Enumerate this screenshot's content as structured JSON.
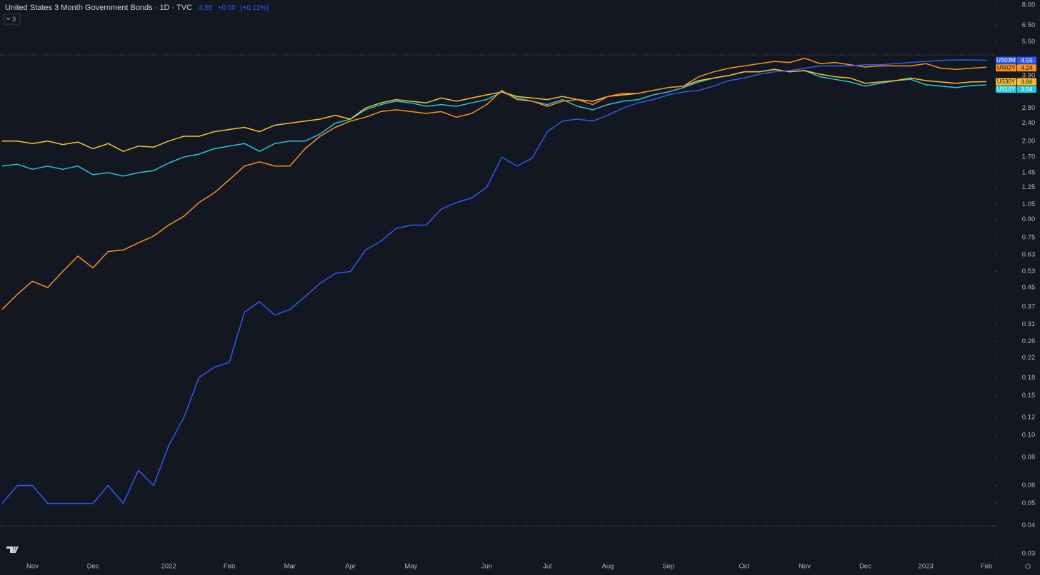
{
  "chart_data": {
    "type": "line",
    "title": "United States 3 Month Government Bonds · 1D · TVC",
    "change": "+0.00",
    "change_percent": "(+0.11%)",
    "indicator_count": 3,
    "log_scale": true,
    "grid": false,
    "ylim": [
      0.0285,
      8.41
    ],
    "yticks": [
      {
        "value": 8,
        "label": "8.00"
      },
      {
        "value": 6.5,
        "label": "6.50"
      },
      {
        "value": 5.5,
        "label": "5.50"
      },
      {
        "value": 3.9,
        "label": "3.90"
      },
      {
        "value": 2.8,
        "label": "2.80"
      },
      {
        "value": 2.4,
        "label": "2.40"
      },
      {
        "value": 2,
        "label": "2.00"
      },
      {
        "value": 1.7,
        "label": "1.70"
      },
      1.45,
      1.25,
      1.05,
      {
        "value": 0.9,
        "label": "0.90"
      },
      0.75,
      0.63,
      0.53,
      0.45,
      0.37,
      0.31,
      0.26,
      0.22,
      0.18,
      0.15,
      0.12,
      {
        "value": 0.1,
        "label": "0.10"
      },
      0.08,
      0.06,
      0.05,
      0.04,
      0.03
    ],
    "categories": [
      null,
      null,
      "Nov",
      null,
      null,
      null,
      "Dec",
      null,
      null,
      null,
      null,
      "2022",
      null,
      null,
      null,
      "Feb",
      null,
      null,
      null,
      "Mar",
      null,
      null,
      null,
      "Apr",
      null,
      null,
      null,
      "May",
      null,
      null,
      null,
      null,
      "Jun",
      null,
      null,
      null,
      "Jul",
      null,
      null,
      null,
      "Aug",
      null,
      null,
      null,
      "Sep",
      null,
      null,
      null,
      null,
      "Oct",
      null,
      null,
      null,
      "Nov",
      null,
      null,
      null,
      "Dec",
      null,
      null,
      null,
      "2023",
      null,
      null,
      null,
      "Feb"
    ],
    "series": [
      {
        "name": "US03M",
        "color": "#2f5cf0",
        "values": [
          0.05,
          0.06,
          0.06,
          0.05,
          0.05,
          0.05,
          0.05,
          0.06,
          0.05,
          0.07,
          0.06,
          0.09,
          0.12,
          0.18,
          0.2,
          0.21,
          0.35,
          0.39,
          0.34,
          0.36,
          0.41,
          0.47,
          0.52,
          0.53,
          0.66,
          0.72,
          0.82,
          0.85,
          0.85,
          1.0,
          1.07,
          1.12,
          1.25,
          1.7,
          1.55,
          1.68,
          2.2,
          2.45,
          2.5,
          2.45,
          2.6,
          2.8,
          2.95,
          3.05,
          3.2,
          3.3,
          3.35,
          3.5,
          3.7,
          3.8,
          3.95,
          4.05,
          4.1,
          4.2,
          4.3,
          4.3,
          4.3,
          4.35,
          4.35,
          4.4,
          4.45,
          4.5,
          4.55,
          4.57,
          4.57,
          4.55
        ]
      },
      {
        "name": "US02Y",
        "color": "#f7931e",
        "values": [
          0.36,
          0.42,
          0.48,
          0.45,
          0.53,
          0.62,
          0.55,
          0.65,
          0.66,
          0.71,
          0.76,
          0.85,
          0.93,
          1.07,
          1.18,
          1.35,
          1.55,
          1.62,
          1.55,
          1.55,
          1.85,
          2.1,
          2.3,
          2.45,
          2.55,
          2.7,
          2.75,
          2.7,
          2.65,
          2.7,
          2.55,
          2.65,
          2.9,
          3.35,
          3.05,
          3.0,
          2.85,
          3.0,
          3.05,
          2.9,
          3.15,
          3.25,
          3.25,
          3.35,
          3.45,
          3.5,
          3.85,
          4.05,
          4.2,
          4.3,
          4.4,
          4.5,
          4.45,
          4.65,
          4.4,
          4.45,
          4.35,
          4.25,
          4.3,
          4.3,
          4.3,
          4.4,
          4.2,
          4.15,
          4.2,
          4.24
        ]
      },
      {
        "name": "US30Y",
        "color": "#fbc02d",
        "values": [
          2.0,
          2.0,
          1.95,
          2.0,
          1.93,
          1.98,
          1.85,
          1.95,
          1.8,
          1.9,
          1.88,
          2.0,
          2.1,
          2.1,
          2.2,
          2.25,
          2.3,
          2.2,
          2.35,
          2.4,
          2.45,
          2.5,
          2.6,
          2.5,
          2.8,
          2.95,
          3.05,
          3.0,
          2.95,
          3.1,
          3.0,
          3.1,
          3.2,
          3.3,
          3.15,
          3.1,
          3.05,
          3.15,
          3.05,
          3.0,
          3.15,
          3.2,
          3.25,
          3.35,
          3.45,
          3.5,
          3.7,
          3.8,
          3.9,
          4.05,
          4.05,
          4.15,
          4.05,
          4.1,
          3.95,
          3.85,
          3.8,
          3.6,
          3.65,
          3.7,
          3.8,
          3.7,
          3.65,
          3.6,
          3.65,
          3.66
        ]
      },
      {
        "name": "US10Y",
        "color": "#26c6da",
        "values": [
          1.55,
          1.58,
          1.5,
          1.55,
          1.5,
          1.55,
          1.42,
          1.45,
          1.4,
          1.45,
          1.48,
          1.6,
          1.7,
          1.75,
          1.85,
          1.9,
          1.95,
          1.8,
          1.95,
          2.0,
          2.0,
          2.15,
          2.4,
          2.5,
          2.75,
          2.9,
          3.0,
          2.95,
          2.85,
          2.9,
          2.85,
          2.95,
          3.05,
          3.3,
          3.1,
          3.0,
          2.9,
          3.05,
          2.85,
          2.75,
          2.9,
          3.0,
          3.05,
          3.2,
          3.3,
          3.45,
          3.65,
          3.8,
          3.9,
          4.05,
          4.05,
          4.15,
          4.05,
          4.1,
          3.85,
          3.75,
          3.65,
          3.5,
          3.6,
          3.7,
          3.75,
          3.55,
          3.5,
          3.45,
          3.52,
          3.54
        ]
      }
    ]
  }
}
